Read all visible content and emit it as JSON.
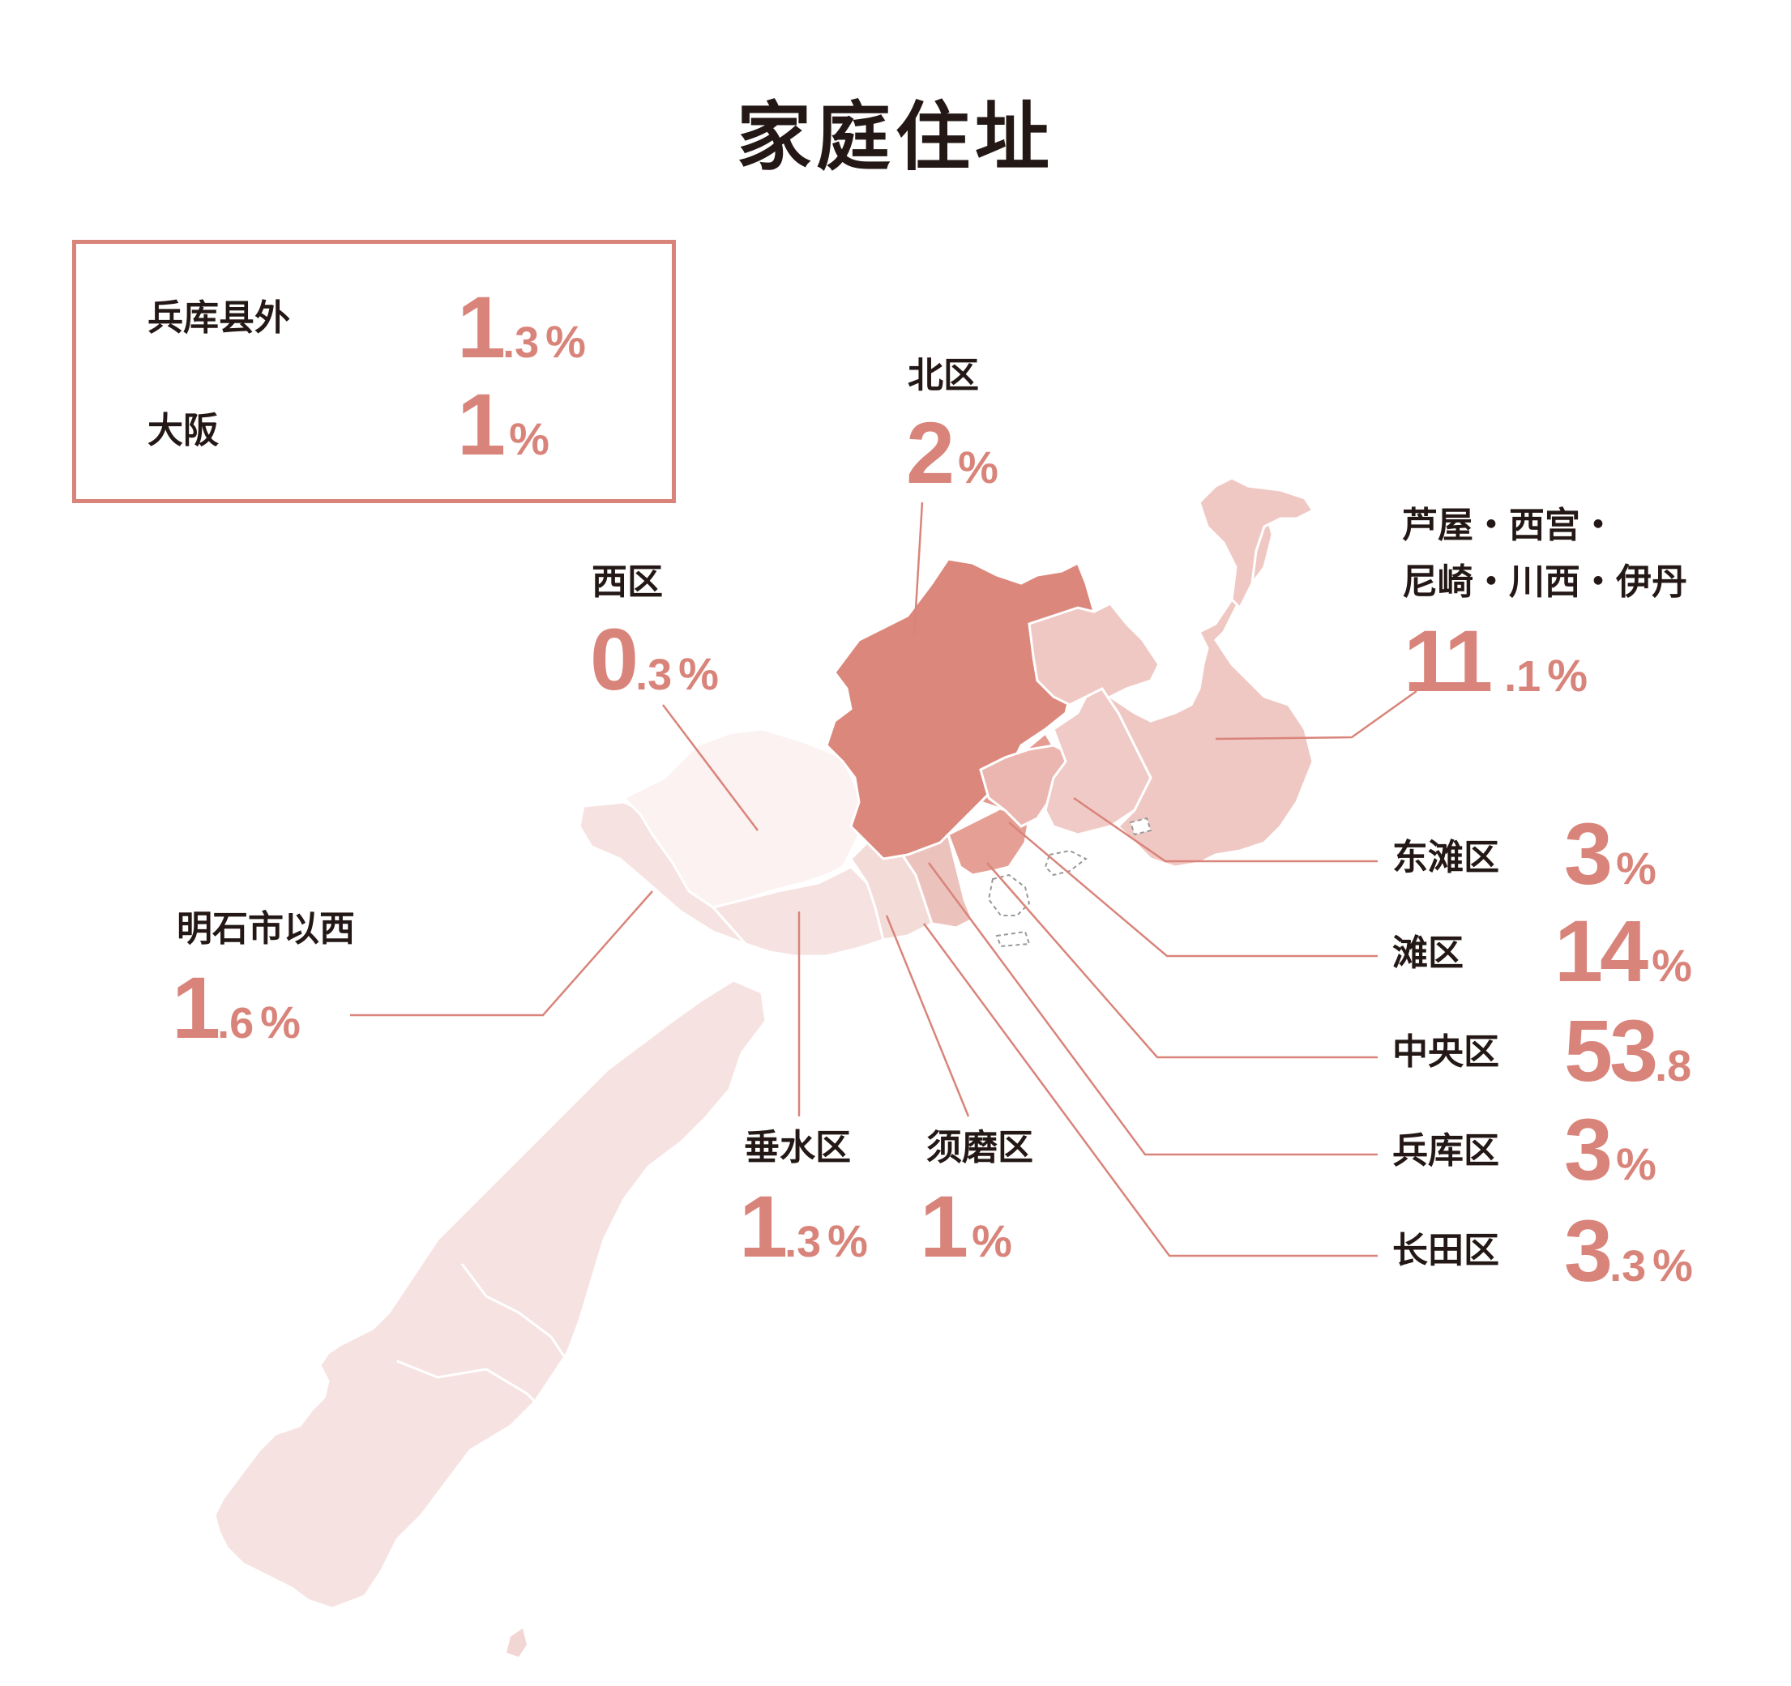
{
  "title": "家庭住址",
  "colors": {
    "accent": "#d9847a",
    "text": "#231815"
  },
  "outside_box": [
    {
      "label": "兵库县外",
      "int": "1",
      "dec": ".3",
      "pct": "%"
    },
    {
      "label": "大阪",
      "int": "1",
      "dec": "",
      "pct": "%"
    }
  ],
  "districts": {
    "kita": {
      "label": "北区",
      "int": "2",
      "dec": "",
      "pct": "%",
      "share": 2.0
    },
    "nishi": {
      "label": "西区",
      "int": "0",
      "dec": ".3",
      "pct": "%",
      "share": 0.3
    },
    "ashiya": {
      "label_line1": "芦屋・西宫・",
      "label_line2": "尼崎・川西・伊丹",
      "int": "11",
      "dec": ".1",
      "pct": "%",
      "share": 11.1
    },
    "akashi": {
      "label": "明石市以西",
      "int": "1",
      "dec": ".6",
      "pct": "%",
      "share": 1.6
    },
    "higashinada": {
      "label": "东滩区",
      "int": "3",
      "dec": "",
      "pct": "%",
      "share": 3.0
    },
    "nada": {
      "label": "滩区",
      "int": "14",
      "dec": "",
      "pct": "%",
      "share": 14.0
    },
    "chuo": {
      "label": "中央区",
      "int": "53",
      "dec": ".8",
      "pct": "",
      "share": 53.8
    },
    "hyogo": {
      "label": "兵库区",
      "int": "3",
      "dec": "",
      "pct": "%",
      "share": 3.0
    },
    "nagata": {
      "label": "长田区",
      "int": "3",
      "dec": ".3",
      "pct": "%",
      "share": 3.3
    },
    "tarumi": {
      "label": "垂水区",
      "int": "1",
      "dec": ".3",
      "pct": "%",
      "share": 1.3
    },
    "suma": {
      "label": "须磨区",
      "int": "1",
      "dec": "",
      "pct": "%",
      "share": 1.0
    }
  }
}
